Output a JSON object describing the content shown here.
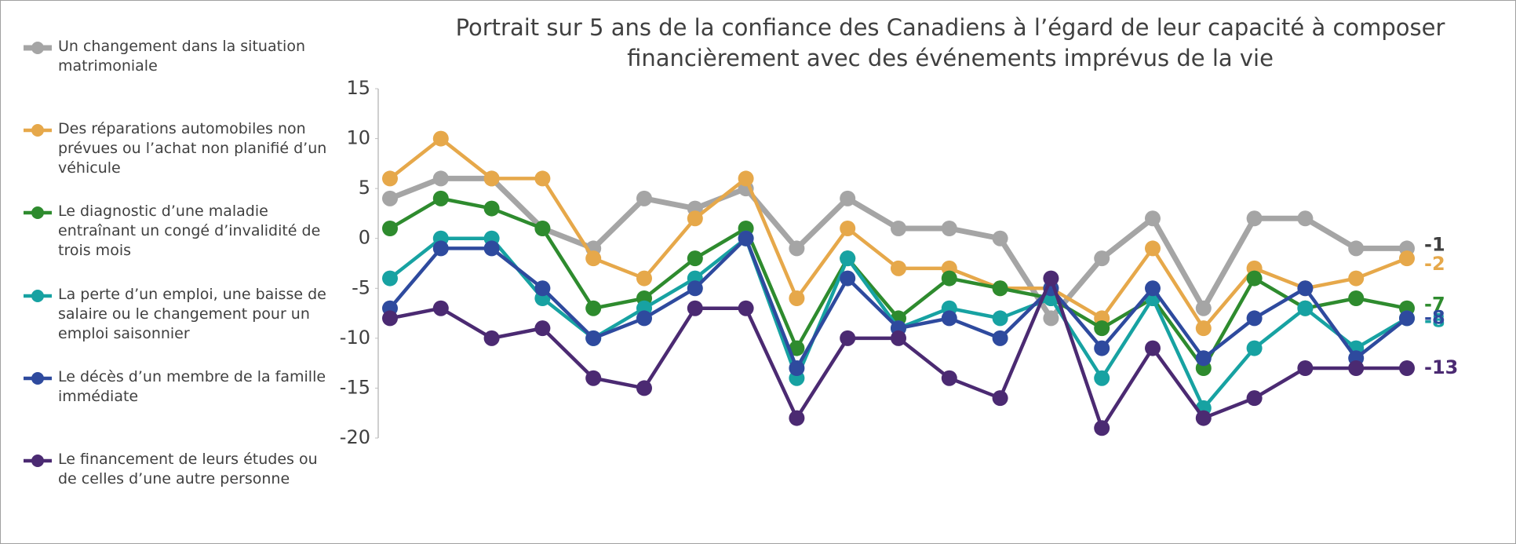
{
  "chart_data": {
    "type": "line",
    "title_lines": [
      "Portrait sur 5 ans de la confiance des Canadiens à l’égard de leur capacité à composer",
      "financièrement avec des événements imprévus de la vie"
    ],
    "categories": [
      null,
      null,
      null,
      null,
      null,
      null,
      null,
      null,
      null,
      null,
      null,
      null,
      null,
      null,
      null,
      null,
      null,
      null,
      null,
      null,
      null
    ],
    "ylim": [
      -20,
      15
    ],
    "yticks": [
      -20,
      -15,
      -10,
      -5,
      0,
      5,
      10,
      15
    ],
    "grid": false,
    "legend": "left",
    "end_labels": true,
    "series": [
      {
        "name": "Un changement dans la situation matrimoniale",
        "color": "#a5a5a5",
        "label_color": "#404040",
        "values": [
          4,
          6,
          6,
          1,
          -1,
          4,
          3,
          5,
          -1,
          4,
          1,
          1,
          0,
          -8,
          -2,
          2,
          -7,
          2,
          2,
          -1,
          -1
        ]
      },
      {
        "name": "Des réparations automobiles non prévues ou l’achat non planifié d’un véhicule",
        "color": "#e6a84a",
        "label_color": "#e6a84a",
        "values": [
          6,
          10,
          6,
          6,
          -2,
          -4,
          2,
          6,
          -6,
          1,
          -3,
          -3,
          -5,
          -5,
          -8,
          -1,
          -9,
          -3,
          -5,
          -4,
          -2
        ]
      },
      {
        "name": "Le diagnostic d’une maladie entraînant un congé d’invalidité de trois mois",
        "color": "#2e8b2e",
        "label_color": "#2e8b2e",
        "values": [
          1,
          4,
          3,
          1,
          -7,
          -6,
          -2,
          1,
          -11,
          -2,
          -8,
          -4,
          -5,
          -6,
          -9,
          -6,
          -13,
          -4,
          -7,
          -6,
          -7
        ]
      },
      {
        "name": "La perte d’un emploi, une baisse de salaire ou le changement pour un emploi saisonnier",
        "color": "#17a2a2",
        "label_color": "#17a2a2",
        "values": [
          -4,
          0,
          0,
          -6,
          -10,
          -7,
          -4,
          0,
          -14,
          -2,
          -9,
          -7,
          -8,
          -6,
          -14,
          -6,
          -17,
          -11,
          -7,
          -11,
          -8
        ]
      },
      {
        "name": "Le décès d’un membre de la famille immédiate",
        "color": "#2e4a9e",
        "label_color": "#2e4a9e",
        "values": [
          -7,
          -1,
          -1,
          -5,
          -10,
          -8,
          -5,
          0,
          -13,
          -4,
          -9,
          -8,
          -10,
          -5,
          -11,
          -5,
          -12,
          -8,
          -5,
          -12,
          -8
        ]
      },
      {
        "name": "Le financement de leurs études ou de celles d’une autre personne",
        "color": "#4b2a72",
        "label_color": "#4b2a72",
        "values": [
          -8,
          -7,
          -10,
          -9,
          -14,
          -15,
          -7,
          -7,
          -18,
          -10,
          -10,
          -14,
          -16,
          -4,
          -19,
          -11,
          -18,
          -16,
          -13,
          -13,
          -13
        ]
      }
    ]
  }
}
